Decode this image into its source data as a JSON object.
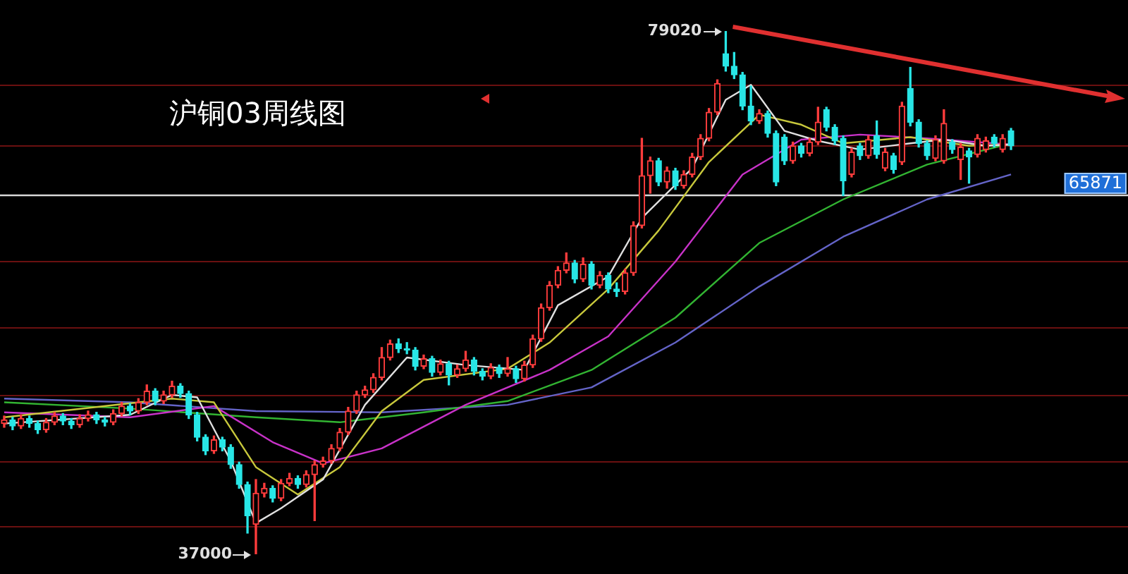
{
  "chart_data": {
    "type": "candlestick",
    "title": "沪铜03周线图",
    "categories": [
      null,
      null,
      null,
      null,
      null,
      null,
      null,
      null,
      null,
      null,
      null,
      null,
      null,
      null,
      null,
      null,
      null,
      null,
      null,
      null,
      null,
      null,
      null,
      null,
      null,
      null,
      null,
      null,
      null,
      null,
      null,
      null,
      null,
      null,
      null,
      null,
      null,
      null,
      null,
      null,
      null,
      null,
      null,
      null,
      null,
      null,
      null,
      null,
      null,
      null,
      null,
      null,
      null,
      null,
      null,
      null,
      null,
      null,
      null,
      null,
      null,
      null,
      null,
      null,
      null,
      null,
      null,
      null,
      null,
      null,
      null,
      null,
      null,
      null,
      null,
      null,
      null,
      null,
      null,
      null,
      null,
      null,
      null,
      null,
      null,
      null,
      null,
      null,
      null,
      null,
      null,
      null,
      null,
      null,
      null,
      null,
      null,
      null,
      null,
      null,
      null,
      null,
      null,
      null,
      null,
      null,
      null,
      null,
      null,
      null,
      null,
      null,
      null,
      null,
      null,
      null,
      null,
      null,
      null,
      null,
      null
    ],
    "ohlc": [
      [
        47500,
        48100,
        47200,
        47800
      ],
      [
        47800,
        48000,
        47000,
        47300
      ],
      [
        47300,
        48200,
        47100,
        47900
      ],
      [
        47900,
        48100,
        47200,
        47500
      ],
      [
        47500,
        47700,
        46700,
        47000
      ],
      [
        47000,
        47900,
        46800,
        47600
      ],
      [
        47600,
        48400,
        47400,
        48100
      ],
      [
        48100,
        48300,
        47400,
        47700
      ],
      [
        47700,
        47900,
        47100,
        47400
      ],
      [
        47400,
        48200,
        47200,
        47900
      ],
      [
        47900,
        48500,
        47700,
        48200
      ],
      [
        48200,
        48400,
        47500,
        47800
      ],
      [
        47800,
        48000,
        47300,
        47600
      ],
      [
        47600,
        48600,
        47400,
        48300
      ],
      [
        48300,
        49200,
        48100,
        48900
      ],
      [
        48900,
        49100,
        48200,
        48500
      ],
      [
        48500,
        49500,
        48300,
        49200
      ],
      [
        49200,
        50600,
        49000,
        50100
      ],
      [
        50100,
        50300,
        49000,
        49300
      ],
      [
        49300,
        50100,
        49100,
        49800
      ],
      [
        49800,
        50900,
        49600,
        50500
      ],
      [
        50500,
        50700,
        49600,
        49900
      ],
      [
        49900,
        50100,
        47900,
        48200
      ],
      [
        48200,
        48400,
        46100,
        46400
      ],
      [
        46400,
        46600,
        45000,
        45300
      ],
      [
        45300,
        46500,
        45100,
        46200
      ],
      [
        46200,
        46400,
        45300,
        45600
      ],
      [
        45600,
        45800,
        43900,
        44200
      ],
      [
        44200,
        44400,
        42300,
        42600
      ],
      [
        42600,
        42800,
        38700,
        40100
      ],
      [
        39400,
        43000,
        37000,
        41900
      ],
      [
        41900,
        42700,
        41600,
        42300
      ],
      [
        42300,
        42500,
        41200,
        41500
      ],
      [
        41500,
        43000,
        41300,
        42700
      ],
      [
        42700,
        43500,
        42500,
        43100
      ],
      [
        43100,
        43300,
        42300,
        42600
      ],
      [
        42600,
        43700,
        42400,
        43400
      ],
      [
        43400,
        44500,
        39700,
        44200
      ],
      [
        44200,
        44800,
        44000,
        44500
      ],
      [
        44500,
        45800,
        44300,
        45500
      ],
      [
        45500,
        47100,
        45300,
        46800
      ],
      [
        46800,
        48800,
        46600,
        48500
      ],
      [
        48500,
        50100,
        48300,
        49800
      ],
      [
        49800,
        50500,
        49600,
        50200
      ],
      [
        50200,
        51500,
        50000,
        51200
      ],
      [
        51200,
        53600,
        51000,
        52800
      ],
      [
        52800,
        54200,
        52600,
        53900
      ],
      [
        53900,
        54300,
        53200,
        53500
      ],
      [
        53500,
        54000,
        53100,
        53400
      ],
      [
        53400,
        53600,
        51800,
        52100
      ],
      [
        52100,
        53000,
        51900,
        52700
      ],
      [
        52700,
        52900,
        51300,
        51600
      ],
      [
        51600,
        52600,
        51400,
        52300
      ],
      [
        52300,
        52500,
        50600,
        51400
      ],
      [
        51400,
        52200,
        51200,
        51900
      ],
      [
        51900,
        53300,
        51700,
        52600
      ],
      [
        52600,
        52800,
        51400,
        51700
      ],
      [
        51700,
        51900,
        51000,
        51300
      ],
      [
        51300,
        52300,
        51100,
        52000
      ],
      [
        52000,
        52200,
        51200,
        51500
      ],
      [
        51500,
        52800,
        51300,
        51900
      ],
      [
        51900,
        52100,
        50800,
        51100
      ],
      [
        51100,
        52500,
        50900,
        52200
      ],
      [
        52200,
        54600,
        52000,
        54300
      ],
      [
        54300,
        57100,
        54100,
        56800
      ],
      [
        56800,
        58900,
        56600,
        58600
      ],
      [
        58600,
        60100,
        58400,
        59800
      ],
      [
        59800,
        61200,
        59600,
        60400
      ],
      [
        60400,
        60600,
        58800,
        59100
      ],
      [
        59100,
        60800,
        58900,
        60300
      ],
      [
        60300,
        60500,
        58300,
        58600
      ],
      [
        58600,
        59700,
        58400,
        59400
      ],
      [
        59400,
        59600,
        58000,
        58300
      ],
      [
        58300,
        58800,
        57700,
        58100
      ],
      [
        58100,
        59900,
        57900,
        59600
      ],
      [
        59600,
        63700,
        59400,
        63400
      ],
      [
        63400,
        70400,
        63200,
        67400
      ],
      [
        67400,
        68900,
        66000,
        68600
      ],
      [
        68600,
        68800,
        66600,
        66900
      ],
      [
        66900,
        68100,
        66400,
        67800
      ],
      [
        67800,
        68000,
        66300,
        66600
      ],
      [
        66600,
        67800,
        66400,
        67500
      ],
      [
        67500,
        69200,
        67300,
        68900
      ],
      [
        68900,
        70700,
        68700,
        70400
      ],
      [
        70400,
        72800,
        70200,
        72500
      ],
      [
        72500,
        75100,
        72300,
        74800
      ],
      [
        77200,
        79020,
        75800,
        76200
      ],
      [
        76200,
        77300,
        75200,
        75500
      ],
      [
        75500,
        75700,
        72700,
        73000
      ],
      [
        73000,
        74600,
        71500,
        71800
      ],
      [
        71800,
        72700,
        71600,
        72400
      ],
      [
        72400,
        72600,
        70500,
        70800
      ],
      [
        70800,
        71000,
        66600,
        66900
      ],
      [
        70500,
        70700,
        68300,
        68600
      ],
      [
        68600,
        70100,
        68400,
        69800
      ],
      [
        69800,
        70000,
        68900,
        69200
      ],
      [
        69200,
        70400,
        69000,
        70100
      ],
      [
        70100,
        72900,
        69900,
        71700
      ],
      [
        72700,
        72900,
        71000,
        71300
      ],
      [
        71300,
        71500,
        69900,
        70200
      ],
      [
        70400,
        70600,
        65800,
        67000
      ],
      [
        67500,
        69600,
        67300,
        69300
      ],
      [
        69800,
        70000,
        68700,
        69000
      ],
      [
        69000,
        70600,
        68800,
        70300
      ],
      [
        70600,
        71800,
        68800,
        69100
      ],
      [
        68000,
        69600,
        67800,
        69300
      ],
      [
        69000,
        69200,
        67600,
        67900
      ],
      [
        68500,
        73300,
        68300,
        73000
      ],
      [
        74400,
        76100,
        71400,
        71700
      ],
      [
        71700,
        71900,
        69700,
        70000
      ],
      [
        70000,
        70200,
        68700,
        69000
      ],
      [
        68800,
        70600,
        68600,
        70300
      ],
      [
        68600,
        72700,
        68400,
        71600
      ],
      [
        70100,
        70300,
        69200,
        69500
      ],
      [
        68700,
        70000,
        67100,
        69700
      ],
      [
        69400,
        69600,
        66800,
        68900
      ],
      [
        69100,
        70700,
        68900,
        70400
      ],
      [
        69500,
        70500,
        69300,
        70200
      ],
      [
        70500,
        70700,
        69700,
        70000
      ],
      [
        69500,
        70700,
        69300,
        70400
      ],
      [
        71000,
        71200,
        69500,
        69800
      ]
    ],
    "series": [
      {
        "type": "line",
        "color": "#e0e0e0",
        "values": [
          47500,
          null,
          null,
          null,
          null,
          null,
          null,
          null,
          null,
          null,
          null,
          null,
          null,
          null,
          null,
          48200,
          null,
          null,
          null,
          null,
          49800,
          null,
          null,
          49600,
          null,
          null,
          null,
          44500,
          null,
          null,
          39500,
          null,
          null,
          40700,
          null,
          null,
          null,
          null,
          43000,
          null,
          null,
          null,
          null,
          49000,
          null,
          null,
          null,
          null,
          52800,
          null,
          null,
          null,
          null,
          null,
          null,
          52200,
          null,
          null,
          null,
          null,
          null,
          null,
          51800,
          null,
          null,
          null,
          57000,
          null,
          null,
          null,
          null,
          null,
          59300,
          null,
          null,
          null,
          64000,
          null,
          null,
          null,
          null,
          null,
          68000,
          null,
          null,
          null,
          73500,
          null,
          null,
          74700,
          null,
          null,
          null,
          71000,
          null,
          null,
          null,
          70200,
          null,
          null,
          null,
          null,
          69500,
          null,
          null,
          null,
          null,
          null,
          70000,
          null,
          null,
          null,
          70300,
          null,
          null,
          null,
          null,
          69800,
          null,
          null,
          69900
        ]
      },
      {
        "type": "line",
        "color": "#c8c83c",
        "values": [
          48000,
          null,
          null,
          null,
          null,
          null,
          null,
          null,
          null,
          null,
          null,
          null,
          null,
          null,
          null,
          null,
          null,
          null,
          null,
          null,
          49500,
          null,
          null,
          null,
          null,
          49200,
          null,
          null,
          null,
          null,
          44000,
          null,
          null,
          null,
          null,
          41800,
          null,
          null,
          null,
          null,
          44000,
          null,
          null,
          null,
          null,
          48500,
          null,
          null,
          null,
          null,
          51000,
          null,
          null,
          null,
          null,
          null,
          null,
          null,
          null,
          null,
          51900,
          null,
          null,
          null,
          null,
          54000,
          null,
          null,
          null,
          null,
          null,
          null,
          58300,
          null,
          null,
          null,
          null,
          null,
          63000,
          null,
          null,
          null,
          null,
          null,
          68500,
          null,
          null,
          null,
          null,
          null,
          72300,
          null,
          null,
          null,
          null,
          71500,
          null,
          null,
          null,
          null,
          70000,
          null,
          null,
          null,
          null,
          null,
          null,
          null,
          70500,
          null,
          null,
          null,
          null,
          null,
          null,
          69800,
          null,
          null,
          null,
          null,
          69900
        ]
      },
      {
        "type": "line",
        "color": "#c832c8",
        "values": [
          48400,
          null,
          null,
          null,
          null,
          null,
          null,
          null,
          null,
          null,
          null,
          null,
          null,
          null,
          null,
          48000,
          null,
          null,
          null,
          null,
          null,
          null,
          null,
          null,
          null,
          48900,
          null,
          null,
          null,
          null,
          null,
          null,
          46000,
          null,
          null,
          null,
          null,
          null,
          44300,
          null,
          null,
          null,
          null,
          null,
          null,
          45500,
          null,
          null,
          null,
          null,
          null,
          null,
          null,
          null,
          null,
          49000,
          null,
          null,
          null,
          null,
          null,
          null,
          null,
          null,
          null,
          51800,
          null,
          null,
          null,
          null,
          null,
          null,
          54500,
          null,
          null,
          null,
          null,
          null,
          null,
          null,
          60500,
          null,
          null,
          null,
          null,
          null,
          null,
          null,
          67500,
          null,
          null,
          null,
          null,
          null,
          null,
          70300,
          null,
          null,
          null,
          null,
          null,
          null,
          70700,
          null,
          null,
          null,
          null,
          null,
          null,
          null,
          70400,
          null,
          null,
          null,
          null,
          null,
          null,
          null,
          null,
          null,
          69900
        ]
      },
      {
        "type": "line",
        "color": "#32b432",
        "values": [
          49200,
          null,
          null,
          null,
          null,
          null,
          null,
          null,
          null,
          null,
          null,
          null,
          null,
          null,
          null,
          48700,
          null,
          null,
          null,
          null,
          null,
          null,
          null,
          null,
          null,
          null,
          null,
          null,
          null,
          null,
          48000,
          null,
          null,
          null,
          null,
          null,
          null,
          null,
          null,
          null,
          47600,
          null,
          null,
          null,
          null,
          null,
          null,
          null,
          null,
          null,
          48400,
          null,
          null,
          null,
          null,
          null,
          null,
          null,
          null,
          null,
          49300,
          null,
          null,
          null,
          null,
          null,
          null,
          null,
          null,
          null,
          51800,
          null,
          null,
          null,
          null,
          null,
          null,
          null,
          null,
          null,
          56000,
          null,
          null,
          null,
          null,
          null,
          null,
          null,
          null,
          null,
          62000,
          null,
          null,
          null,
          null,
          null,
          null,
          null,
          null,
          null,
          65500,
          null,
          null,
          null,
          null,
          null,
          null,
          null,
          null,
          null,
          68300,
          null,
          null,
          null,
          null,
          null,
          null,
          null,
          null,
          null,
          70000
        ]
      },
      {
        "type": "line",
        "color": "#6464c8",
        "values": [
          49500,
          null,
          null,
          null,
          null,
          null,
          null,
          null,
          null,
          null,
          null,
          null,
          null,
          null,
          null,
          49200,
          null,
          null,
          null,
          null,
          null,
          null,
          null,
          null,
          null,
          null,
          null,
          null,
          null,
          null,
          48500,
          null,
          null,
          null,
          null,
          null,
          null,
          null,
          null,
          null,
          null,
          null,
          null,
          null,
          null,
          48400,
          null,
          null,
          null,
          null,
          null,
          null,
          null,
          null,
          null,
          null,
          null,
          null,
          null,
          null,
          49000,
          null,
          null,
          null,
          null,
          null,
          null,
          null,
          null,
          null,
          50400,
          null,
          null,
          null,
          null,
          null,
          null,
          null,
          null,
          null,
          54000,
          null,
          null,
          null,
          null,
          null,
          null,
          null,
          null,
          null,
          58500,
          null,
          null,
          null,
          null,
          null,
          null,
          null,
          null,
          null,
          62500,
          null,
          null,
          null,
          null,
          null,
          null,
          null,
          null,
          null,
          65500,
          null,
          null,
          null,
          null,
          null,
          null,
          null,
          null,
          null,
          67500
        ]
      }
    ],
    "annotations": [
      "79020",
      "37000"
    ],
    "ref_lines": [
      {
        "axis": "y",
        "value": 65871,
        "label": "65871",
        "color": "#d8d8d8"
      }
    ],
    "yticks": [
      {
        "value": 74720,
        "label": null
      },
      {
        "value": 69850,
        "label": null
      },
      {
        "value": 60560,
        "label": null
      },
      {
        "value": 55240,
        "label": null
      },
      {
        "value": 49800,
        "label": null
      },
      {
        "value": 44480,
        "label": null
      },
      {
        "value": 39270,
        "label": null
      }
    ],
    "grid": "y"
  }
}
